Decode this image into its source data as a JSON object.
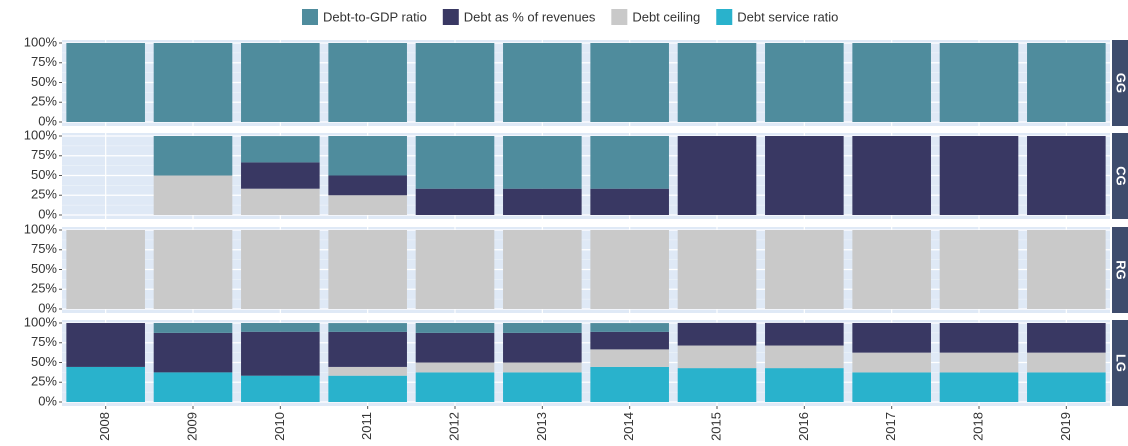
{
  "chart_data": {
    "type": "bar",
    "stacked": true,
    "categories": [
      "2008",
      "2009",
      "2010",
      "2011",
      "2012",
      "2013",
      "2014",
      "2015",
      "2016",
      "2017",
      "2018",
      "2019"
    ],
    "series": [
      {
        "name": "Debt-to-GDP ratio",
        "color": "#4f8c9d"
      },
      {
        "name": "Debt as % of revenues",
        "color": "#393863"
      },
      {
        "name": "Debt ceiling",
        "color": "#c9c9c9"
      },
      {
        "name": "Debt service ratio",
        "color": "#29b2cc"
      }
    ],
    "ylim": [
      0,
      100
    ],
    "yticks": [
      {
        "value": 0,
        "label": "0%"
      },
      {
        "value": 25,
        "label": "25%"
      },
      {
        "value": 50,
        "label": "50%"
      },
      {
        "value": 75,
        "label": "75%"
      },
      {
        "value": 100,
        "label": "100%"
      }
    ],
    "grid": true,
    "facets": [
      {
        "label": "GG",
        "values": [
          [
            100,
            100,
            100,
            100,
            100,
            100,
            100,
            100,
            100,
            100,
            100,
            100
          ],
          [
            0,
            0,
            0,
            0,
            0,
            0,
            0,
            0,
            0,
            0,
            0,
            0
          ],
          [
            0,
            0,
            0,
            0,
            0,
            0,
            0,
            0,
            0,
            0,
            0,
            0
          ],
          [
            0,
            0,
            0,
            0,
            0,
            0,
            0,
            0,
            0,
            0,
            0,
            0
          ]
        ]
      },
      {
        "label": "CG",
        "values": [
          [
            null,
            50,
            33.3,
            50,
            66.7,
            66.7,
            66.7,
            0,
            0,
            0,
            0,
            0
          ],
          [
            null,
            0,
            33.3,
            25,
            33.3,
            33.3,
            33.3,
            100,
            100,
            100,
            100,
            100
          ],
          [
            null,
            50,
            33.3,
            25,
            0,
            0,
            0,
            0,
            0,
            0,
            0,
            0
          ],
          [
            null,
            0,
            0,
            0,
            0,
            0,
            0,
            0,
            0,
            0,
            0,
            0
          ]
        ]
      },
      {
        "label": "RG",
        "values": [
          [
            0,
            0,
            0,
            0,
            0,
            0,
            0,
            0,
            0,
            0,
            0,
            0
          ],
          [
            0,
            0,
            0,
            0,
            0,
            0,
            0,
            0,
            0,
            0,
            0,
            0
          ],
          [
            100,
            100,
            100,
            100,
            100,
            100,
            100,
            100,
            100,
            100,
            100,
            100
          ],
          [
            0,
            0,
            0,
            0,
            0,
            0,
            0,
            0,
            0,
            0,
            0,
            0
          ]
        ]
      },
      {
        "label": "LG",
        "values": [
          [
            0,
            12.5,
            11.1,
            11.1,
            12.5,
            12.5,
            11.1,
            0,
            0,
            0,
            0,
            0
          ],
          [
            55.6,
            50,
            55.6,
            44.4,
            37.5,
            37.5,
            22.2,
            28.6,
            28.6,
            37.5,
            37.5,
            37.5
          ],
          [
            0,
            0,
            0,
            11.1,
            12.5,
            12.5,
            22.2,
            28.6,
            28.6,
            25,
            25,
            25
          ],
          [
            44.4,
            37.5,
            33.3,
            33.3,
            37.5,
            37.5,
            44.4,
            42.9,
            42.9,
            37.5,
            37.5,
            37.5
          ]
        ]
      }
    ]
  }
}
